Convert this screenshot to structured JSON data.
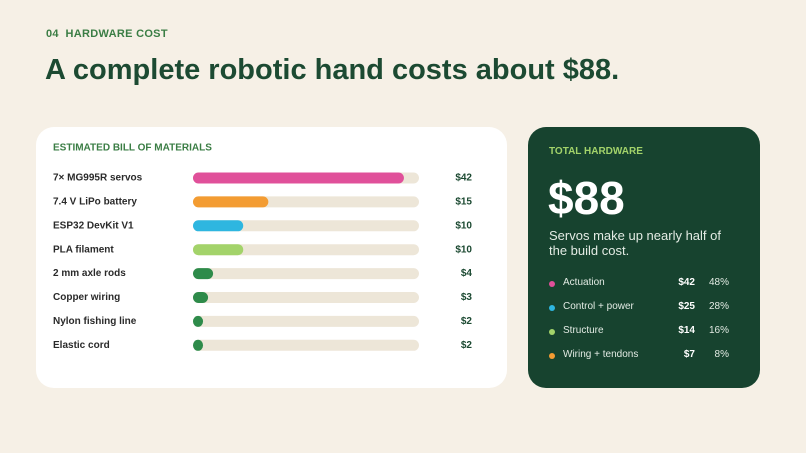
{
  "header": {
    "eyebrow": "04  HARDWARE COST",
    "title": "A complete robotic hand costs about $88."
  },
  "chart_data": {
    "type": "bar",
    "orientation": "horizontal",
    "title": "ESTIMATED BILL OF MATERIALS",
    "categories": [
      "7× MG995R servos",
      "7.4 V LiPo battery",
      "ESP32 DevKit V1",
      "PLA filament",
      "2 mm axle rods",
      "Copper wiring",
      "Nylon fishing line",
      "Elastic cord"
    ],
    "values": [
      42,
      15,
      10,
      10,
      4,
      3,
      2,
      2
    ],
    "value_labels": [
      "$42",
      "$15",
      "$10",
      "$10",
      "$4",
      "$3",
      "$2",
      "$2"
    ],
    "colors": [
      "#e0509a",
      "#f39c32",
      "#2eb6e0",
      "#a3d36a",
      "#2e8b4a",
      "#2e8b4a",
      "#2e8b4a",
      "#2e8b4a"
    ],
    "xlim": [
      0,
      45
    ]
  },
  "summary": {
    "label": "TOTAL HARDWARE",
    "total": "$88",
    "note": "Servos make up nearly half of the build cost.",
    "items": [
      {
        "name": "Actuation",
        "amount": "$42",
        "share": "48%",
        "color": "#e0509a"
      },
      {
        "name": "Control + power",
        "amount": "$25",
        "share": "28%",
        "color": "#2eb6e0"
      },
      {
        "name": "Structure",
        "amount": "$14",
        "share": "16%",
        "color": "#a3d36a"
      },
      {
        "name": "Wiring + tendons",
        "amount": "$7",
        "share": "8%",
        "color": "#f39c32"
      }
    ]
  }
}
